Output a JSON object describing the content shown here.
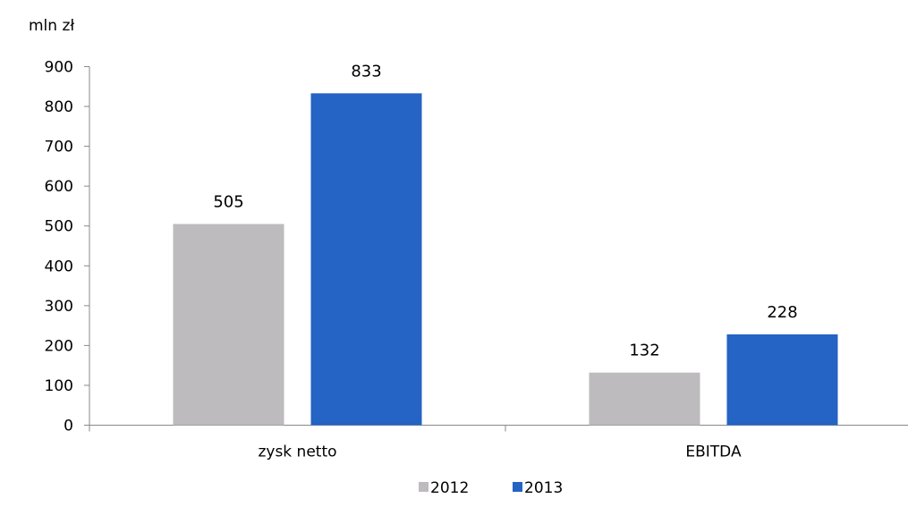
{
  "chart_data": {
    "type": "bar",
    "title": "",
    "ylabel": "mln zł",
    "xlabel": "",
    "categories": [
      "zysk netto",
      "EBITDA"
    ],
    "series": [
      {
        "name": "2012",
        "color": "#bdbbbd",
        "values": [
          505,
          132
        ]
      },
      {
        "name": "2013",
        "color": "#2563c4",
        "values": [
          833,
          228
        ]
      }
    ],
    "ylim": [
      0,
      900
    ],
    "yticks": [
      "0",
      "100",
      "200",
      "300",
      "400",
      "500",
      "600",
      "700",
      "800",
      "900"
    ],
    "grid": false,
    "legend": "bottom-center"
  }
}
